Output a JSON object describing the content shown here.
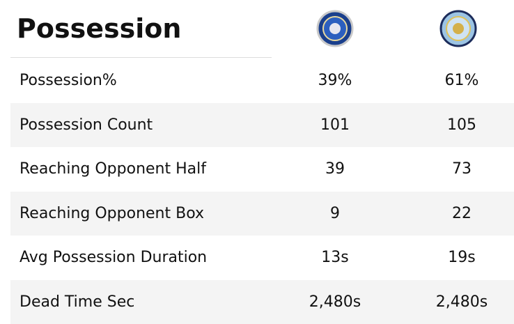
{
  "header": {
    "title": "Possession"
  },
  "table": {
    "rows": [
      [
        "Possession%",
        "39%",
        "61%"
      ],
      [
        "Possession Count",
        "101",
        "105"
      ],
      [
        "Reaching Opponent Half",
        "39",
        "73"
      ],
      [
        "Reaching Opponent Box",
        "9",
        "22"
      ],
      [
        "Avg Possession Duration",
        "13s",
        "19s"
      ],
      [
        "Dead Time Sec",
        "2,480s",
        "2,480s"
      ]
    ]
  }
}
